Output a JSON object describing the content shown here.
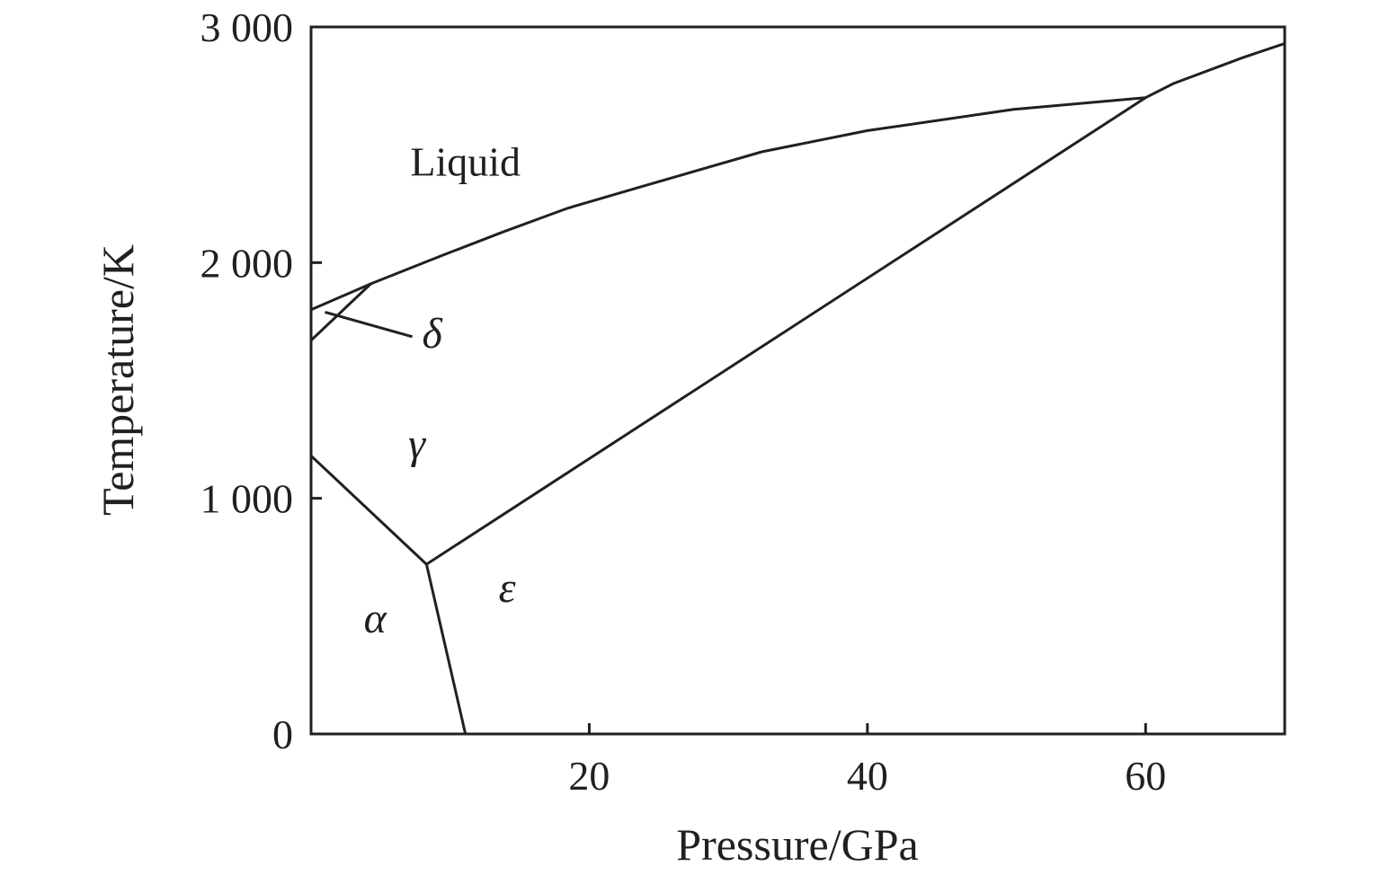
{
  "chart_data": {
    "type": "line",
    "title": "",
    "xlabel": "Pressure/GPa",
    "ylabel": "Temperature/K",
    "xlim": [
      0,
      70
    ],
    "ylim": [
      0,
      3000
    ],
    "x_ticks": [
      {
        "value": 20,
        "label": "20"
      },
      {
        "value": 40,
        "label": "40"
      },
      {
        "value": 60,
        "label": "60"
      }
    ],
    "y_ticks": [
      {
        "value": 0,
        "label": "0"
      },
      {
        "value": 1000,
        "label": "1 000"
      },
      {
        "value": 2000,
        "label": "2 000"
      },
      {
        "value": 3000,
        "label": "3 000"
      }
    ],
    "grid": false,
    "legend": "none",
    "colors": {
      "ink": "#231f20",
      "background": "#ffffff"
    },
    "series": [
      {
        "x": [
          0,
          4.3,
          9.4,
          13.8,
          18.4,
          23.6,
          32.4,
          40,
          50.5,
          60,
          62,
          67,
          70
        ],
        "y": [
          1800,
          1910,
          2030,
          2130,
          2230,
          2320,
          2470,
          2560,
          2650,
          2700,
          2760,
          2870,
          2930
        ]
      },
      {
        "x": [
          0,
          4.3
        ],
        "y": [
          1670,
          1910
        ]
      },
      {
        "x": [
          0,
          8.3
        ],
        "y": [
          1180,
          720
        ]
      },
      {
        "x": [
          8.3,
          11.1
        ],
        "y": [
          720,
          0
        ]
      },
      {
        "x": [
          8.3,
          60
        ],
        "y": [
          720,
          2700
        ]
      }
    ],
    "region_labels": [
      {
        "text": "Liquid",
        "x": 11.1,
        "y": 2370,
        "italic": false
      },
      {
        "text": "δ",
        "x": 8.7,
        "y": 1640,
        "italic": true,
        "pointer": {
          "x": 1,
          "y": 1790
        }
      },
      {
        "text": "γ",
        "x": 7.6,
        "y": 1170,
        "italic": true
      },
      {
        "text": "α",
        "x": 4.6,
        "y": 430,
        "italic": true
      },
      {
        "text": "ε",
        "x": 14.1,
        "y": 560,
        "italic": true
      }
    ]
  }
}
